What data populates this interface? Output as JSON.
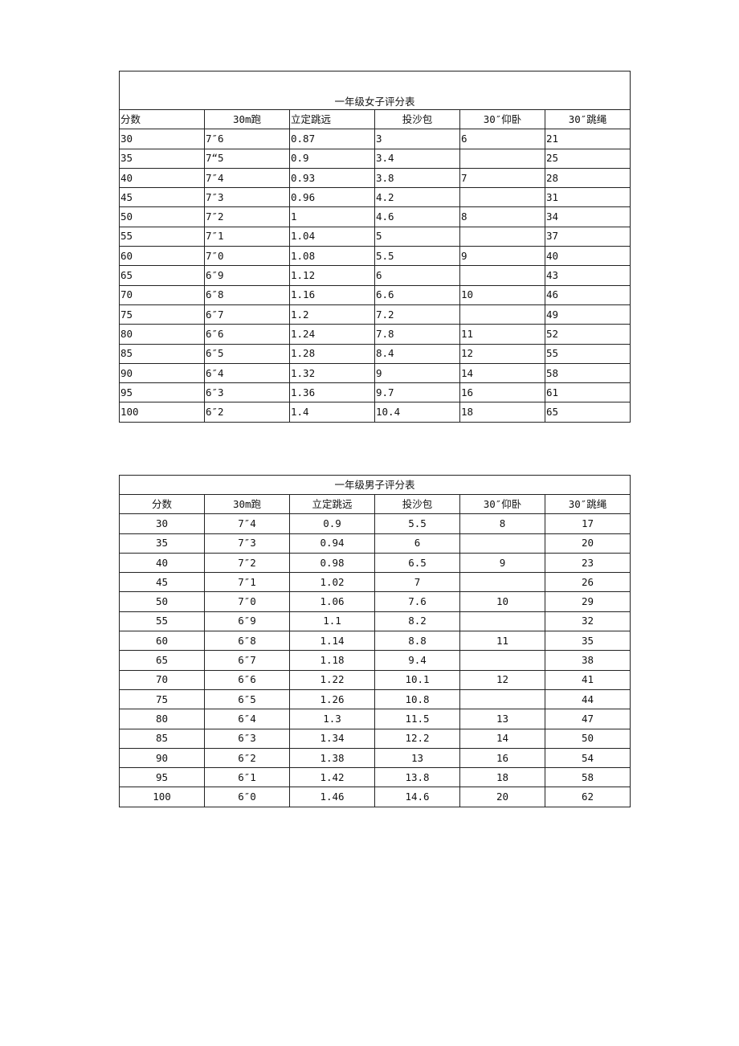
{
  "girls": {
    "title": "一年级女子评分表",
    "headers": [
      "分数",
      "30m跑",
      "立定跳远",
      "投沙包",
      "30″仰卧",
      "30″跳绳"
    ],
    "rows": [
      [
        "30",
        "7″6",
        "0.87",
        "3",
        "6",
        "21"
      ],
      [
        "35",
        "7“5",
        "0.9",
        "3.4",
        "",
        "25"
      ],
      [
        "40",
        "7″4",
        "0.93",
        "3.8",
        "7",
        "28"
      ],
      [
        "45",
        "7″3",
        "0.96",
        "4.2",
        "",
        "31"
      ],
      [
        "50",
        "7″2",
        "1",
        "4.6",
        "8",
        "34"
      ],
      [
        "55",
        "7″1",
        "1.04",
        "5",
        "",
        "37"
      ],
      [
        "60",
        "7″0",
        "1.08",
        "5.5",
        "9",
        "40"
      ],
      [
        "65",
        "6″9",
        "1.12",
        "6",
        "",
        "43"
      ],
      [
        "70",
        "6″8",
        "1.16",
        "6.6",
        "10",
        "46"
      ],
      [
        "75",
        "6″7",
        "1.2",
        "7.2",
        "",
        "49"
      ],
      [
        "80",
        "6″6",
        "1.24",
        "7.8",
        "11",
        "52"
      ],
      [
        "85",
        "6″5",
        "1.28",
        "8.4",
        "12",
        "55"
      ],
      [
        "90",
        "6″4",
        "1.32",
        "9",
        "14",
        "58"
      ],
      [
        "95",
        "6″3",
        "1.36",
        "9.7",
        "16",
        "61"
      ],
      [
        "100",
        "6″2",
        "1.4",
        "10.4",
        "18",
        "65"
      ]
    ]
  },
  "boys": {
    "title": "一年级男子评分表",
    "headers": [
      "分数",
      "30m跑",
      "立定跳远",
      "投沙包",
      "30″仰卧",
      "30″跳绳"
    ],
    "rows": [
      [
        "30",
        "7″4",
        "0.9",
        "5.5",
        "8",
        "17"
      ],
      [
        "35",
        "7″3",
        "0.94",
        "6",
        "",
        "20"
      ],
      [
        "40",
        "7″2",
        "0.98",
        "6.5",
        "9",
        "23"
      ],
      [
        "45",
        "7″1",
        "1.02",
        "7",
        "",
        "26"
      ],
      [
        "50",
        "7″0",
        "1.06",
        "7.6",
        "10",
        "29"
      ],
      [
        "55",
        "6″9",
        "1.1",
        "8.2",
        "",
        "32"
      ],
      [
        "60",
        "6″8",
        "1.14",
        "8.8",
        "11",
        "35"
      ],
      [
        "65",
        "6″7",
        "1.18",
        "9.4",
        "",
        "38"
      ],
      [
        "70",
        "6″6",
        "1.22",
        "10.1",
        "12",
        "41"
      ],
      [
        "75",
        "6″5",
        "1.26",
        "10.8",
        "",
        "44"
      ],
      [
        "80",
        "6″4",
        "1.3",
        "11.5",
        "13",
        "47"
      ],
      [
        "85",
        "6″3",
        "1.34",
        "12.2",
        "14",
        "50"
      ],
      [
        "90",
        "6″2",
        "1.38",
        "13",
        "16",
        "54"
      ],
      [
        "95",
        "6″1",
        "1.42",
        "13.8",
        "18",
        "58"
      ],
      [
        "100",
        "6″0",
        "1.46",
        "14.6",
        "20",
        "62"
      ]
    ]
  }
}
